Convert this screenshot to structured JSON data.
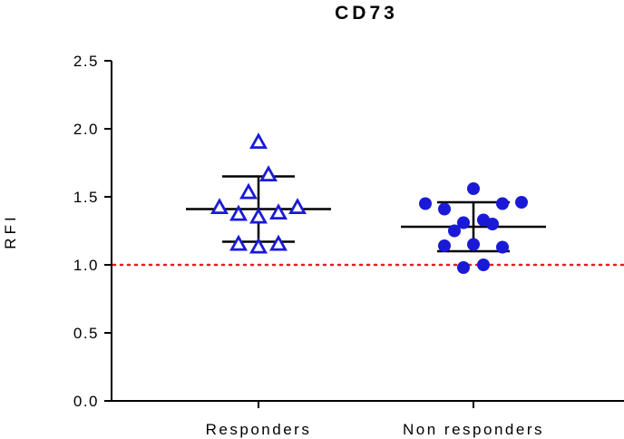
{
  "chart_data": {
    "type": "scatter",
    "title": "CD73",
    "xlabel": "",
    "ylabel": "RFI",
    "ylim": [
      0,
      2.5
    ],
    "yticks": [
      "0.0",
      "0.5",
      "1.0",
      "1.5",
      "2.0",
      "2.5"
    ],
    "categories": [
      "Responders",
      "Non responders"
    ],
    "reference_line": {
      "y": 1.0,
      "style": "dotted",
      "color": "#e02020"
    },
    "series": [
      {
        "category": "Responders",
        "marker": "open-triangle",
        "color": "#1a1ad6",
        "points": [
          {
            "offset": 0.0,
            "y": 1.9
          },
          {
            "offset": 0.11,
            "y": 1.66
          },
          {
            "offset": -0.11,
            "y": 1.53
          },
          {
            "offset": -0.43,
            "y": 1.42
          },
          {
            "offset": 0.43,
            "y": 1.42
          },
          {
            "offset": -0.22,
            "y": 1.37
          },
          {
            "offset": 0.22,
            "y": 1.38
          },
          {
            "offset": 0.0,
            "y": 1.35
          },
          {
            "offset": -0.22,
            "y": 1.15
          },
          {
            "offset": 0.22,
            "y": 1.15
          },
          {
            "offset": 0.0,
            "y": 1.13
          }
        ],
        "mean": 1.41,
        "sd_upper": 1.65,
        "sd_lower": 1.17
      },
      {
        "category": "Non responders",
        "marker": "filled-circle",
        "color": "#1a1ad6",
        "points": [
          {
            "offset": 0.0,
            "y": 1.56
          },
          {
            "offset": -0.53,
            "y": 1.45
          },
          {
            "offset": 0.53,
            "y": 1.46
          },
          {
            "offset": 0.32,
            "y": 1.45
          },
          {
            "offset": -0.32,
            "y": 1.41
          },
          {
            "offset": 0.11,
            "y": 1.33
          },
          {
            "offset": -0.11,
            "y": 1.31
          },
          {
            "offset": 0.21,
            "y": 1.3
          },
          {
            "offset": -0.21,
            "y": 1.25
          },
          {
            "offset": 0.0,
            "y": 1.15
          },
          {
            "offset": -0.32,
            "y": 1.14
          },
          {
            "offset": 0.32,
            "y": 1.13
          },
          {
            "offset": 0.11,
            "y": 1.0
          },
          {
            "offset": -0.11,
            "y": 0.98
          }
        ],
        "mean": 1.28,
        "sd_upper": 1.46,
        "sd_lower": 1.1
      }
    ],
    "colors": {
      "axis": "#000000",
      "marker": "#1a1ad6",
      "reference": "#e02020"
    }
  }
}
